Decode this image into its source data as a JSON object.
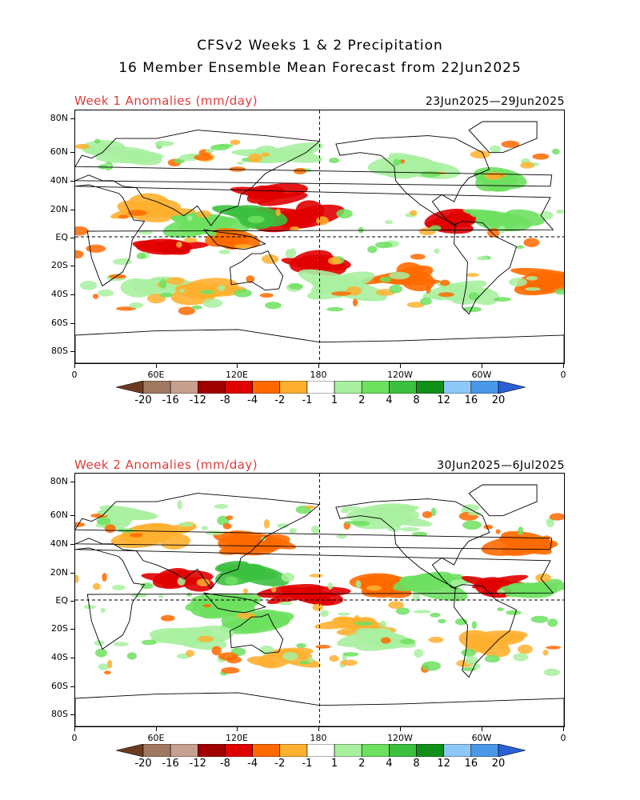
{
  "title": {
    "line1": "CFSv2 Weeks 1 & 2 Precipitation",
    "line2": "16 Member Ensemble Mean Forecast from 22Jun2025"
  },
  "panels": [
    {
      "label": "Week 1 Anomalies (mm/day)",
      "dates": "23Jun2025—29Jun2025",
      "lat_ticks": [
        "80N",
        "60N",
        "40N",
        "20N",
        "EQ",
        "20S",
        "40S",
        "60S",
        "80S"
      ],
      "lon_ticks": [
        "0",
        "60E",
        "120E",
        "180",
        "120W",
        "60W",
        "0"
      ],
      "anomaly_regions": [
        {
          "lon": 100,
          "lat": 10,
          "level": "wet2"
        },
        {
          "lon": 140,
          "lat": 30,
          "level": "dry3"
        },
        {
          "lon": 165,
          "lat": 15,
          "level": "dry3"
        },
        {
          "lon": 130,
          "lat": 15,
          "level": "wet3"
        },
        {
          "lon": 60,
          "lat": -5,
          "level": "dry3"
        },
        {
          "lon": 120,
          "lat": -5,
          "level": "dry2"
        },
        {
          "lon": 175,
          "lat": -20,
          "level": "dry3"
        },
        {
          "lon": 240,
          "lat": -28,
          "level": "dry2"
        },
        {
          "lon": 280,
          "lat": 10,
          "level": "dry3"
        },
        {
          "lon": 320,
          "lat": 12,
          "level": "wet2"
        },
        {
          "lon": 60,
          "lat": -35,
          "level": "wet1"
        },
        {
          "lon": 100,
          "lat": -40,
          "level": "dry1"
        },
        {
          "lon": 200,
          "lat": -35,
          "level": "wet1"
        },
        {
          "lon": 290,
          "lat": -40,
          "level": "wet1"
        },
        {
          "lon": 30,
          "lat": 60,
          "level": "wet1"
        },
        {
          "lon": 150,
          "lat": 60,
          "level": "wet1"
        },
        {
          "lon": 250,
          "lat": 50,
          "level": "wet1"
        },
        {
          "lon": 300,
          "lat": 40,
          "level": "wet2"
        },
        {
          "lon": 340,
          "lat": -30,
          "level": "dry2"
        },
        {
          "lon": 60,
          "lat": 20,
          "level": "dry1"
        }
      ]
    },
    {
      "label": "Week 2 Anomalies (mm/day)",
      "dates": "30Jun2025—6Jul2025",
      "lat_ticks": [
        "80N",
        "60N",
        "40N",
        "20N",
        "EQ",
        "20S",
        "40S",
        "60S",
        "80S"
      ],
      "lon_ticks": [
        "0",
        "60E",
        "120E",
        "180",
        "120W",
        "60W",
        "0"
      ],
      "anomaly_regions": [
        {
          "lon": 80,
          "lat": 15,
          "level": "dry3"
        },
        {
          "lon": 130,
          "lat": 20,
          "level": "wet3"
        },
        {
          "lon": 140,
          "lat": 40,
          "level": "dry2"
        },
        {
          "lon": 170,
          "lat": 5,
          "level": "dry3"
        },
        {
          "lon": 225,
          "lat": 10,
          "level": "dry2"
        },
        {
          "lon": 270,
          "lat": 12,
          "level": "wet2"
        },
        {
          "lon": 320,
          "lat": 10,
          "level": "dry3"
        },
        {
          "lon": 345,
          "lat": 10,
          "level": "wet2"
        },
        {
          "lon": 110,
          "lat": -5,
          "level": "wet2"
        },
        {
          "lon": 130,
          "lat": -15,
          "level": "wet2"
        },
        {
          "lon": 90,
          "lat": -25,
          "level": "wet1"
        },
        {
          "lon": 200,
          "lat": -20,
          "level": "dry1"
        },
        {
          "lon": 220,
          "lat": -30,
          "level": "wet1"
        },
        {
          "lon": 310,
          "lat": -30,
          "level": "dry1"
        },
        {
          "lon": 30,
          "lat": 60,
          "level": "wet1"
        },
        {
          "lon": 330,
          "lat": 40,
          "level": "dry2"
        },
        {
          "lon": 230,
          "lat": 60,
          "level": "wet1"
        },
        {
          "lon": 60,
          "lat": 45,
          "level": "dry1"
        },
        {
          "lon": 150,
          "lat": -40,
          "level": "dry1"
        }
      ]
    }
  ],
  "colorbar": {
    "bins": [
      {
        "color": "#6b3a20"
      },
      {
        "color": "#a07860"
      },
      {
        "color": "#c8a090"
      },
      {
        "color": "#a00000"
      },
      {
        "color": "#e00000"
      },
      {
        "color": "#ff6a00"
      },
      {
        "color": "#ffb030"
      },
      {
        "color": "#ffffff"
      },
      {
        "color": "#a8f0a0"
      },
      {
        "color": "#6ee060"
      },
      {
        "color": "#3cc040"
      },
      {
        "color": "#109018"
      },
      {
        "color": "#8ec8f8"
      },
      {
        "color": "#4a98e8"
      },
      {
        "color": "#2a60d8"
      }
    ],
    "labels": [
      "-20",
      "-16",
      "-12",
      "-8",
      "-4",
      "-2",
      "-1",
      "1",
      "2",
      "4",
      "8",
      "12",
      "16",
      "20"
    ]
  },
  "level_colors": {
    "dry1": "#ffb030",
    "dry2": "#ff6a00",
    "dry3": "#e00000",
    "wet1": "#a8f0a0",
    "wet2": "#6ee060",
    "wet3": "#3cc040"
  },
  "label_color": "#e03a3a"
}
